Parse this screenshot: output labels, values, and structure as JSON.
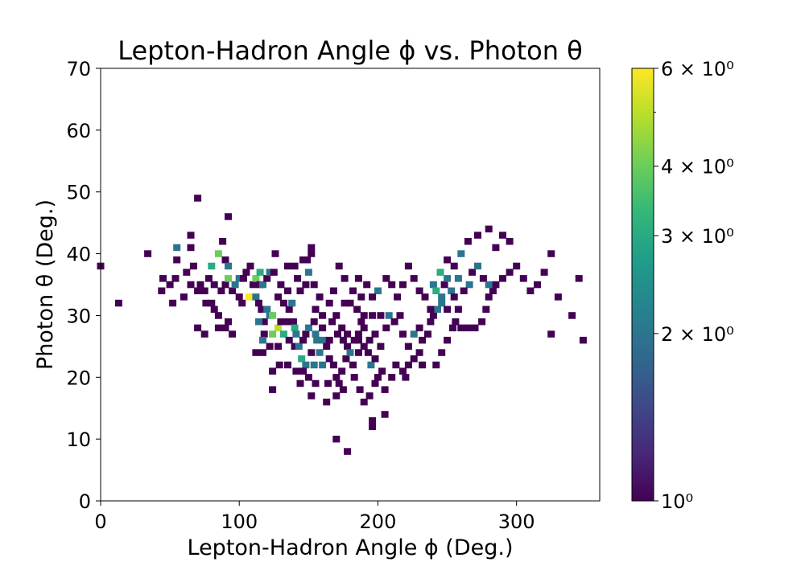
{
  "chart_data": {
    "type": "heatmap",
    "title": "Lepton-Hadron Angle ϕ vs. Photon θ",
    "xlabel": "Lepton-Hadron Angle ϕ (Deg.)",
    "ylabel": "Photon θ (Deg.)",
    "xlim": [
      0,
      360
    ],
    "ylim": [
      0,
      70
    ],
    "xticks": [
      0,
      100,
      200,
      300
    ],
    "xtick_labels": [
      "0",
      "100",
      "200",
      "300"
    ],
    "yticks": [
      0,
      10,
      20,
      30,
      40,
      50,
      60,
      70
    ],
    "ytick_labels": [
      "0",
      "10",
      "20",
      "30",
      "40",
      "50",
      "60",
      "70"
    ],
    "bin_width_x": 5.2,
    "bin_width_y": 1.1,
    "colorbar": {
      "scale": "log",
      "colormap": "viridis",
      "range": [
        1,
        6
      ],
      "ticks": [
        1,
        2,
        3,
        4,
        6
      ],
      "tick_labels": [
        "10⁰",
        "2 × 10⁰",
        "3 × 10⁰",
        "4 × 10⁰",
        "6 × 10⁰"
      ]
    },
    "cells": [
      [
        0,
        38,
        1
      ],
      [
        13,
        32,
        1
      ],
      [
        34,
        40,
        1
      ],
      [
        45,
        36,
        1
      ],
      [
        44,
        34,
        1
      ],
      [
        52,
        32,
        1
      ],
      [
        50,
        35,
        1
      ],
      [
        54,
        36,
        1
      ],
      [
        55,
        39,
        1
      ],
      [
        55,
        41,
        2
      ],
      [
        60,
        33,
        1
      ],
      [
        62,
        37,
        1
      ],
      [
        65,
        35,
        1
      ],
      [
        67,
        38,
        1
      ],
      [
        65,
        41,
        1
      ],
      [
        65,
        43,
        1
      ],
      [
        70,
        49,
        1
      ],
      [
        72,
        35,
        1
      ],
      [
        70,
        34,
        1
      ],
      [
        75,
        34,
        1
      ],
      [
        76,
        32,
        1
      ],
      [
        80,
        32,
        1
      ],
      [
        82,
        31,
        1
      ],
      [
        85,
        30,
        1
      ],
      [
        70,
        28,
        1
      ],
      [
        75,
        27,
        1
      ],
      [
        85,
        28,
        1
      ],
      [
        90,
        28,
        1
      ],
      [
        92,
        29,
        1
      ],
      [
        95,
        27,
        1
      ],
      [
        78,
        36,
        1
      ],
      [
        80,
        38,
        3
      ],
      [
        85,
        40,
        4
      ],
      [
        88,
        42,
        1
      ],
      [
        90,
        39,
        1
      ],
      [
        92,
        38,
        2
      ],
      [
        92,
        46,
        1
      ],
      [
        82,
        35,
        1
      ],
      [
        87,
        34,
        1
      ],
      [
        90,
        35,
        1
      ],
      [
        95,
        34,
        1
      ],
      [
        100,
        33,
        1
      ],
      [
        92,
        36,
        4
      ],
      [
        97,
        35,
        2
      ],
      [
        100,
        36,
        2
      ],
      [
        103,
        36,
        1
      ],
      [
        105,
        37,
        1
      ],
      [
        108,
        38,
        1
      ],
      [
        110,
        35,
        1
      ],
      [
        102,
        32,
        1
      ],
      [
        107,
        33,
        6
      ],
      [
        112,
        33,
        2
      ],
      [
        114,
        32,
        1
      ],
      [
        112,
        36,
        4
      ],
      [
        115,
        35,
        1
      ],
      [
        117,
        35,
        2
      ],
      [
        115,
        37,
        3
      ],
      [
        120,
        36,
        1
      ],
      [
        122,
        37,
        2
      ],
      [
        125,
        37,
        1
      ],
      [
        126,
        40,
        1
      ],
      [
        116,
        31,
        1
      ],
      [
        120,
        31,
        2
      ],
      [
        118,
        29,
        1
      ],
      [
        122,
        30,
        2
      ],
      [
        124,
        30,
        4
      ],
      [
        128,
        28,
        5
      ],
      [
        132,
        27,
        3
      ],
      [
        114,
        29,
        2
      ],
      [
        118,
        27,
        1
      ],
      [
        122,
        25,
        1
      ],
      [
        117,
        26,
        2
      ],
      [
        112,
        24,
        1
      ],
      [
        117,
        24,
        1
      ],
      [
        124,
        27,
        4
      ],
      [
        128,
        25,
        1
      ],
      [
        130,
        29,
        1
      ],
      [
        132,
        32,
        1
      ],
      [
        136,
        31,
        1
      ],
      [
        138,
        32,
        2
      ],
      [
        135,
        34,
        1
      ],
      [
        130,
        35,
        1
      ],
      [
        135,
        38,
        1
      ],
      [
        140,
        38,
        1
      ],
      [
        142,
        36,
        1
      ],
      [
        144,
        34,
        1
      ],
      [
        148,
        35,
        1
      ],
      [
        150,
        37,
        2
      ],
      [
        149,
        39,
        1
      ],
      [
        152,
        41,
        1
      ],
      [
        152,
        40,
        1
      ],
      [
        146,
        39,
        1
      ],
      [
        128,
        33,
        1
      ],
      [
        134,
        29,
        1
      ],
      [
        139,
        29,
        1
      ],
      [
        140,
        28,
        3
      ],
      [
        141,
        27,
        2
      ],
      [
        136,
        26,
        1
      ],
      [
        140,
        25,
        1
      ],
      [
        143,
        25,
        2
      ],
      [
        146,
        26,
        1
      ],
      [
        148,
        27,
        1
      ],
      [
        150,
        28,
        2
      ],
      [
        154,
        29,
        1
      ],
      [
        145,
        23,
        3
      ],
      [
        148,
        22,
        2
      ],
      [
        152,
        24,
        1
      ],
      [
        154,
        22,
        2
      ],
      [
        146,
        21,
        1
      ],
      [
        141,
        21,
        1
      ],
      [
        135,
        22,
        1
      ],
      [
        129,
        22,
        1
      ],
      [
        124,
        21,
        1
      ],
      [
        124,
        18,
        1
      ],
      [
        144,
        19,
        1
      ],
      [
        150,
        20,
        1
      ],
      [
        152,
        17,
        1
      ],
      [
        155,
        19,
        1
      ],
      [
        160,
        22,
        2
      ],
      [
        158,
        24,
        2
      ],
      [
        156,
        26,
        2
      ],
      [
        160,
        26,
        2
      ],
      [
        163,
        25,
        1
      ],
      [
        165,
        23,
        1
      ],
      [
        168,
        22,
        1
      ],
      [
        170,
        20,
        1
      ],
      [
        172,
        19,
        1
      ],
      [
        174,
        21,
        1
      ],
      [
        177,
        23,
        1
      ],
      [
        178,
        25,
        1
      ],
      [
        180,
        24,
        2
      ],
      [
        183,
        26,
        1
      ],
      [
        186,
        27,
        1
      ],
      [
        188,
        29,
        1
      ],
      [
        190,
        30,
        1
      ],
      [
        185,
        31,
        1
      ],
      [
        180,
        32,
        1
      ],
      [
        176,
        32,
        1
      ],
      [
        170,
        30,
        1
      ],
      [
        167,
        29,
        1
      ],
      [
        160,
        30,
        1
      ],
      [
        158,
        33,
        1
      ],
      [
        154,
        35,
        1
      ],
      [
        155,
        31,
        1
      ],
      [
        163,
        16,
        1
      ],
      [
        164,
        19,
        1
      ],
      [
        170,
        17,
        1
      ],
      [
        175,
        18,
        1
      ],
      [
        183,
        20,
        1
      ],
      [
        187,
        18,
        1
      ],
      [
        190,
        16,
        1
      ],
      [
        194,
        17,
        1
      ],
      [
        198,
        19,
        1
      ],
      [
        200,
        20,
        1
      ],
      [
        195,
        22,
        2
      ],
      [
        193,
        24,
        1
      ],
      [
        198,
        23,
        1
      ],
      [
        203,
        21,
        1
      ],
      [
        205,
        18,
        1
      ],
      [
        210,
        20,
        1
      ],
      [
        213,
        22,
        1
      ],
      [
        218,
        21,
        1
      ],
      [
        220,
        20,
        1
      ],
      [
        222,
        22,
        1
      ],
      [
        226,
        23,
        1
      ],
      [
        230,
        24,
        1
      ],
      [
        232,
        26,
        1
      ],
      [
        236,
        27,
        1
      ],
      [
        238,
        29,
        1
      ],
      [
        240,
        30,
        1
      ],
      [
        243,
        31,
        2
      ],
      [
        246,
        33,
        2
      ],
      [
        248,
        35,
        1
      ],
      [
        250,
        36,
        2
      ],
      [
        253,
        34,
        2
      ],
      [
        255,
        33,
        1
      ],
      [
        258,
        31,
        1
      ],
      [
        256,
        29,
        1
      ],
      [
        260,
        28,
        1
      ],
      [
        265,
        28,
        1
      ],
      [
        270,
        28,
        1
      ],
      [
        275,
        29,
        1
      ],
      [
        278,
        31,
        1
      ],
      [
        280,
        33,
        1
      ],
      [
        283,
        34,
        1
      ],
      [
        285,
        35,
        1
      ],
      [
        290,
        36,
        1
      ],
      [
        295,
        37,
        1
      ],
      [
        300,
        38,
        1
      ],
      [
        305,
        36,
        1
      ],
      [
        310,
        34,
        1
      ],
      [
        315,
        35,
        1
      ],
      [
        320,
        37,
        1
      ],
      [
        325,
        40,
        1
      ],
      [
        330,
        33,
        1
      ],
      [
        340,
        30,
        1
      ],
      [
        345,
        36,
        1
      ],
      [
        325,
        27,
        1
      ],
      [
        348,
        26,
        1
      ],
      [
        260,
        40,
        2
      ],
      [
        265,
        42,
        1
      ],
      [
        272,
        43,
        1
      ],
      [
        280,
        44,
        1
      ],
      [
        285,
        41,
        1
      ],
      [
        290,
        43,
        1
      ],
      [
        295,
        42,
        1
      ],
      [
        268,
        37,
        1
      ],
      [
        272,
        38,
        2
      ],
      [
        276,
        36,
        1
      ],
      [
        280,
        35,
        2
      ],
      [
        266,
        35,
        2
      ],
      [
        262,
        34,
        1
      ],
      [
        258,
        36,
        2
      ],
      [
        255,
        38,
        1
      ],
      [
        250,
        39,
        1
      ],
      [
        245,
        37,
        3
      ],
      [
        240,
        35,
        2
      ],
      [
        242,
        34,
        3
      ],
      [
        246,
        32,
        2
      ],
      [
        250,
        31,
        1
      ],
      [
        238,
        31,
        1
      ],
      [
        234,
        33,
        1
      ],
      [
        230,
        34,
        1
      ],
      [
        226,
        36,
        1
      ],
      [
        222,
        38,
        1
      ],
      [
        218,
        35,
        1
      ],
      [
        214,
        33,
        1
      ],
      [
        210,
        35,
        1
      ],
      [
        206,
        36,
        1
      ],
      [
        200,
        34,
        2
      ],
      [
        196,
        33,
        1
      ],
      [
        192,
        35,
        1
      ],
      [
        188,
        33,
        1
      ],
      [
        186,
        36,
        1
      ],
      [
        182,
        34,
        1
      ],
      [
        176,
        36,
        1
      ],
      [
        172,
        38,
        1
      ],
      [
        168,
        34,
        1
      ],
      [
        165,
        32,
        1
      ],
      [
        202,
        30,
        1
      ],
      [
        206,
        28,
        1
      ],
      [
        208,
        30,
        2
      ],
      [
        212,
        29,
        1
      ],
      [
        216,
        30,
        1
      ],
      [
        218,
        27,
        1
      ],
      [
        222,
        25,
        1
      ],
      [
        226,
        27,
        2
      ],
      [
        230,
        28,
        1
      ],
      [
        202,
        25,
        1
      ],
      [
        198,
        27,
        1
      ],
      [
        194,
        26,
        1
      ],
      [
        190,
        25,
        1
      ],
      [
        186,
        24,
        1
      ],
      [
        182,
        22,
        1
      ],
      [
        178,
        27,
        1
      ],
      [
        175,
        26,
        1
      ],
      [
        196,
        13,
        1
      ],
      [
        205,
        14,
        1
      ],
      [
        196,
        12,
        1
      ],
      [
        170,
        10,
        1
      ],
      [
        178,
        8,
        1
      ],
      [
        232,
        22,
        1
      ],
      [
        242,
        22,
        1
      ],
      [
        246,
        24,
        1
      ],
      [
        250,
        26,
        1
      ],
      [
        254,
        28,
        1
      ],
      [
        186,
        26,
        1
      ],
      [
        190,
        28,
        1
      ],
      [
        196,
        30,
        1
      ],
      [
        155,
        27,
        2
      ],
      [
        160,
        28,
        1
      ],
      [
        165,
        26,
        1
      ],
      [
        171,
        27,
        1
      ],
      [
        174,
        28,
        1
      ]
    ]
  }
}
